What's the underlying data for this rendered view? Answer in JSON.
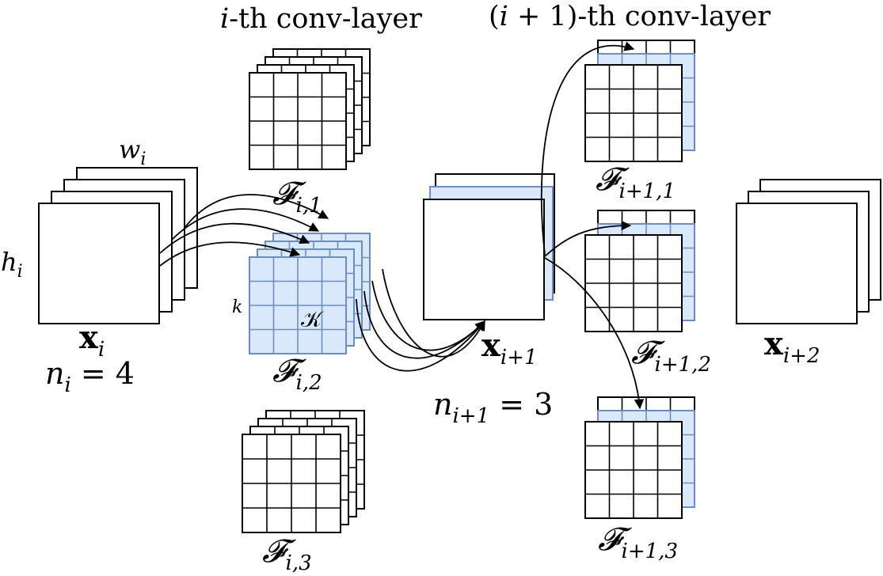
{
  "colors": {
    "stroke": "#000000",
    "paper": "#ffffff",
    "highlight_fill": "#dae8fc",
    "highlight_stroke": "#6c8ebf"
  },
  "labels": {
    "title_i": {
      "var": "i",
      "rest": "-th conv-layer"
    },
    "title_i1": {
      "open": "(",
      "var": "i",
      "mid": " + 1)",
      "rest": "-th conv-layer"
    },
    "width": {
      "base": "w",
      "sub": "i"
    },
    "height": {
      "base": "h",
      "sub": "i"
    },
    "kernel_size": "k",
    "kernel": "𝒦",
    "x_i": {
      "base": "x",
      "sub": "i"
    },
    "x_i1": {
      "base": "x",
      "sub": "i+1"
    },
    "x_i2": {
      "base": "x",
      "sub": "i+2"
    },
    "n_i": {
      "base": "n",
      "sub": "i",
      "rel": " = 4"
    },
    "n_i1": {
      "base": "n",
      "sub": "i+1",
      "rel": " = 3"
    },
    "F_i1": {
      "base": "𝓕",
      "sub": "i,1"
    },
    "F_i2": {
      "base": "𝓕",
      "sub": "i,2"
    },
    "F_i3": {
      "base": "𝓕",
      "sub": "i,3"
    },
    "F_i11": {
      "base": "𝓕",
      "sub": "i+1,1"
    },
    "F_i12": {
      "base": "𝓕",
      "sub": "i+1,2"
    },
    "F_i13": {
      "base": "𝓕",
      "sub": "i+1,3"
    }
  },
  "structure": {
    "input_channels": 4,
    "output_channels": 3,
    "filter_grid_cells": 4,
    "filters_layer_i": 3,
    "filters_layer_i1": 3
  }
}
